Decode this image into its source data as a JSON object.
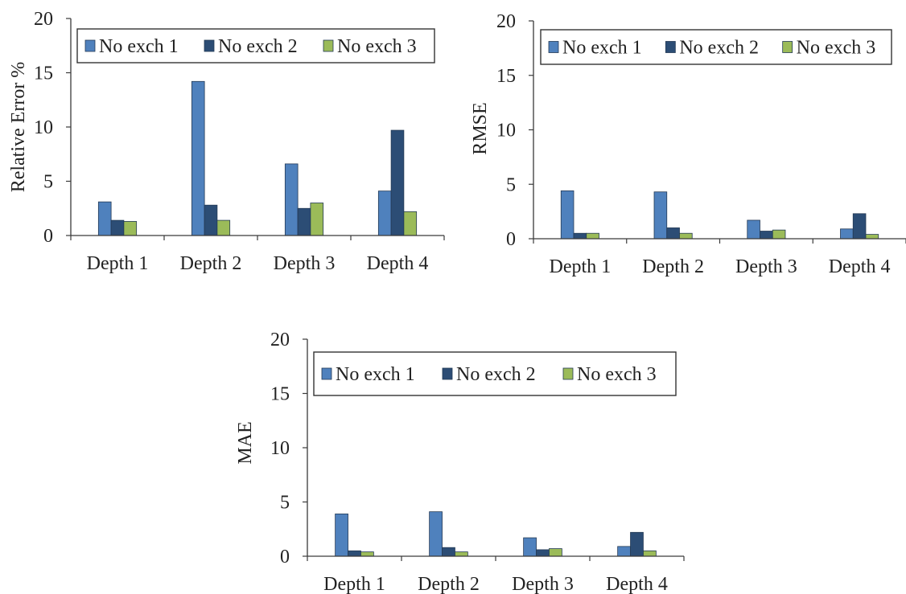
{
  "colors": {
    "series_1": "#4f81bd",
    "series_2": "#2c4d75",
    "series_3": "#9bbb59",
    "axis": "#3a3a3a"
  },
  "chart_data": [
    {
      "type": "bar",
      "ylabel": "Relative Error %",
      "ylim": [
        0,
        20
      ],
      "yticks": [
        0,
        5,
        10,
        15,
        20
      ],
      "categories": [
        "Depth 1",
        "Depth 2",
        "Depth 3",
        "Depth 4"
      ],
      "series": [
        {
          "name": "No exch 1",
          "values": [
            3.1,
            14.2,
            6.6,
            4.1
          ]
        },
        {
          "name": "No exch 2",
          "values": [
            1.4,
            2.8,
            2.5,
            9.7
          ]
        },
        {
          "name": "No exch 3",
          "values": [
            1.3,
            1.4,
            3.0,
            2.2
          ]
        }
      ],
      "legend": "top",
      "grid": false
    },
    {
      "type": "bar",
      "ylabel": "RMSE",
      "ylim": [
        0,
        20
      ],
      "yticks": [
        0,
        5,
        10,
        15,
        20
      ],
      "categories": [
        "Depth 1",
        "Depth 2",
        "Depth 3",
        "Depth 4"
      ],
      "series": [
        {
          "name": "No exch 1",
          "values": [
            4.4,
            4.3,
            1.7,
            0.9
          ]
        },
        {
          "name": "No exch 2",
          "values": [
            0.5,
            1.0,
            0.7,
            2.3
          ]
        },
        {
          "name": "No exch 3",
          "values": [
            0.5,
            0.5,
            0.8,
            0.4
          ]
        }
      ],
      "legend": "top",
      "grid": false
    },
    {
      "type": "bar",
      "ylabel": "MAE",
      "ylim": [
        0,
        20
      ],
      "yticks": [
        0,
        5,
        10,
        15,
        20
      ],
      "categories": [
        "Depth 1",
        "Depth 2",
        "Depth 3",
        "Depth 4"
      ],
      "series": [
        {
          "name": "No exch 1",
          "values": [
            3.9,
            4.1,
            1.7,
            0.9
          ]
        },
        {
          "name": "No exch 2",
          "values": [
            0.5,
            0.8,
            0.6,
            2.2
          ]
        },
        {
          "name": "No exch 3",
          "values": [
            0.4,
            0.4,
            0.7,
            0.5
          ]
        }
      ],
      "legend": "top",
      "grid": false
    }
  ]
}
